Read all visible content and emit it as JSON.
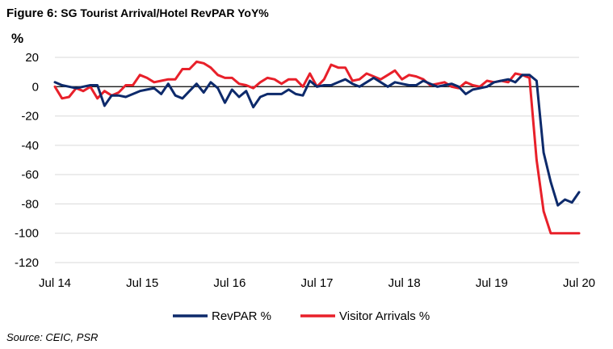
{
  "figure": {
    "title_lead": "Figure 6:",
    "title_rest": " SG Tourist Arrival/Hotel RevPAR YoY%",
    "unit": "%",
    "source": "Source: CEIC, PSR"
  },
  "colors": {
    "revpar": "#0d2a6b",
    "visitors": "#e8202a",
    "grid": "#d9d9d9",
    "zero": "#000000"
  },
  "chart_data": {
    "type": "line",
    "title": "SG Tourist Arrival/Hotel RevPAR YoY%",
    "ylabel": "%",
    "ylim": [
      -120,
      20
    ],
    "yticks": [
      20,
      0,
      -20,
      -40,
      -60,
      -80,
      -100,
      -120
    ],
    "x_labels": [
      "Jul 14",
      "Jul 15",
      "Jul 16",
      "Jul 17",
      "Jul 18",
      "Jul 19",
      "Jul 20"
    ],
    "x_start": "Jul 14",
    "x_end": "Jul 20",
    "grid": true,
    "legend": "bottom",
    "series": [
      {
        "name": "RevPAR %",
        "values": [
          3,
          1,
          0,
          -1,
          0,
          1,
          1,
          -13,
          -6,
          -6,
          -7,
          -5,
          -3,
          -2,
          -1,
          -5,
          2,
          -6,
          -8,
          -3,
          2,
          -4,
          3,
          -1,
          -11,
          -2,
          -7,
          -3,
          -14,
          -7,
          -5,
          -5,
          -5,
          -2,
          -5,
          -6,
          4,
          0,
          1,
          1,
          3,
          5,
          2,
          0,
          3,
          6,
          3,
          0,
          3,
          2,
          1,
          1,
          4,
          2,
          0,
          1,
          2,
          0,
          -5,
          -2,
          -1,
          0,
          3,
          4,
          5,
          3,
          8,
          8,
          4,
          -45,
          -65,
          -81,
          -77,
          -79,
          -72
        ],
        "x_end": "Jul 20"
      },
      {
        "name": "Visitor Arrivals %",
        "values": [
          0,
          -8,
          -7,
          -1,
          -3,
          0,
          -8,
          -3,
          -6,
          -4,
          1,
          1,
          8,
          6,
          3,
          4,
          5,
          5,
          12,
          12,
          17,
          16,
          13,
          8,
          6,
          6,
          2,
          1,
          -1,
          3,
          6,
          5,
          2,
          5,
          5,
          0,
          9,
          0,
          5,
          15,
          13,
          13,
          4,
          5,
          9,
          7,
          5,
          8,
          11,
          5,
          8,
          7,
          5,
          1,
          2,
          3,
          0,
          -1,
          3,
          1,
          0,
          4,
          3,
          4,
          3,
          9,
          8,
          6,
          -50,
          -85,
          -100,
          -100,
          -100,
          -100,
          -100
        ],
        "x_end": "Jul 20"
      }
    ]
  }
}
